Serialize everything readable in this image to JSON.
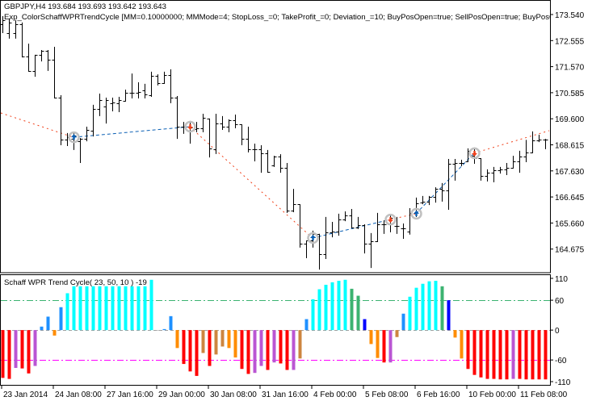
{
  "header": {
    "symbol_line": "GBPJPY,H4  193.684 193.693 193.642 193.643",
    "expert_line": "Exp_ColorSchaffWPRTrendCycle [MM=0.10000000; MMMode=4; StopLoss_=0; TakeProfit_=0; Deviation_=10; BuyPosOpen=true; SellPosOpen=true; BuyPosC"
  },
  "indicator": {
    "label": "Schaff WPR Trend Cycle( 23, 50, 10 ) -19"
  },
  "chart_data": [
    {
      "type": "ohlc",
      "symbol": "GBPJPY",
      "timeframe": "H4",
      "ylim": [
        163.78,
        174.09
      ],
      "y_tick_labels": [
        "173.540",
        "172.555",
        "171.570",
        "170.585",
        "169.600",
        "168.615",
        "167.630",
        "166.645",
        "165.660",
        "164.675"
      ],
      "x_tick_labels": [
        {
          "bar": 0,
          "label": "23 Jan 2014"
        },
        {
          "bar": 8,
          "label": "24 Jan 08:00"
        },
        {
          "bar": 16,
          "label": "27 Jan 16:00"
        },
        {
          "bar": 24,
          "label": "29 Jan 00:00"
        },
        {
          "bar": 32,
          "label": "30 Jan 08:00"
        },
        {
          "bar": 40,
          "label": "31 Jan 16:00"
        },
        {
          "bar": 48,
          "label": "4 Feb 00:00"
        },
        {
          "bar": 56,
          "label": "5 Feb 08:00"
        },
        {
          "bar": 64,
          "label": "6 Feb 16:00"
        },
        {
          "bar": 72,
          "label": "10 Feb 00:00"
        },
        {
          "bar": 80,
          "label": "11 Feb 08:00"
        }
      ],
      "bars_ohlc": [
        [
          173.17,
          173.48,
          172.87,
          173.33
        ],
        [
          172.84,
          173.39,
          172.66,
          173.24
        ],
        [
          172.84,
          173.33,
          172.66,
          173.17
        ],
        [
          173.17,
          173.24,
          171.95,
          171.95
        ],
        [
          171.95,
          172.44,
          171.41,
          171.41
        ],
        [
          171.41,
          172.02,
          171.22,
          172.02
        ],
        [
          172.02,
          172.2,
          171.8,
          172.17
        ],
        [
          172.17,
          172.2,
          171.44,
          171.83
        ],
        [
          171.83,
          172.32,
          170.4,
          170.4
        ],
        [
          170.4,
          170.49,
          168.63,
          168.81
        ],
        [
          168.81,
          169.06,
          168.6,
          168.9
        ],
        [
          168.85,
          169.06,
          168.45,
          168.97
        ],
        [
          168.75,
          168.87,
          167.96,
          168.85
        ],
        [
          168.85,
          169.3,
          168.78,
          169.18
        ],
        [
          169.15,
          170.13,
          168.96,
          169.97
        ],
        [
          169.97,
          170.55,
          169.73,
          170.31
        ],
        [
          170.06,
          170.4,
          169.45,
          170.31
        ],
        [
          170.19,
          170.4,
          169.91,
          170.22
        ],
        [
          170.19,
          170.43,
          169.88,
          170.31
        ],
        [
          170.28,
          170.7,
          170.28,
          170.58
        ],
        [
          170.58,
          171.31,
          170.4,
          170.58
        ],
        [
          170.58,
          170.98,
          170.4,
          170.61
        ],
        [
          170.67,
          170.92,
          170.4,
          170.52
        ],
        [
          170.49,
          171.38,
          170.46,
          171.22
        ],
        [
          171.22,
          171.28,
          170.89,
          170.95
        ],
        [
          170.95,
          171.38,
          170.95,
          171.25
        ],
        [
          171.25,
          171.47,
          170.22,
          170.4
        ],
        [
          170.4,
          170.46,
          168.87,
          169.3
        ],
        [
          169.3,
          169.48,
          169.06,
          169.3
        ],
        [
          169.3,
          169.52,
          168.69,
          169.27
        ],
        [
          169.21,
          169.48,
          169.12,
          169.24
        ],
        [
          169.24,
          169.79,
          169.12,
          169.64
        ],
        [
          169.61,
          169.61,
          168.17,
          168.48
        ],
        [
          168.45,
          169.79,
          168.3,
          169.42
        ],
        [
          169.42,
          169.7,
          169.21,
          169.3
        ],
        [
          169.3,
          169.58,
          169.12,
          169.55
        ],
        [
          169.55,
          169.76,
          169.27,
          169.39
        ],
        [
          169.39,
          169.39,
          168.63,
          168.85
        ],
        [
          168.85,
          169.3,
          168.36,
          168.45
        ],
        [
          168.45,
          168.66,
          168.02,
          168.45
        ],
        [
          168.45,
          168.6,
          167.59,
          168.3
        ],
        [
          168.3,
          168.42,
          167.59,
          167.59
        ],
        [
          167.84,
          168.2,
          167.81,
          168.17
        ],
        [
          168.17,
          168.26,
          167.59,
          167.75
        ],
        [
          167.75,
          167.93,
          166.07,
          166.13
        ],
        [
          166.13,
          166.95,
          166.1,
          166.37
        ],
        [
          166.37,
          166.37,
          164.76,
          164.88
        ],
        [
          164.88,
          165.0,
          164.36,
          165.0
        ],
        [
          165.0,
          165.37,
          164.76,
          165.25
        ],
        [
          165.25,
          165.25,
          163.93,
          164.48
        ],
        [
          164.48,
          165.89,
          164.33,
          165.31
        ],
        [
          165.31,
          165.7,
          165.15,
          165.34
        ],
        [
          165.34,
          166.01,
          165.21,
          165.79
        ],
        [
          165.79,
          166.1,
          165.76,
          165.95
        ],
        [
          165.95,
          166.19,
          165.49,
          165.49
        ],
        [
          165.49,
          165.89,
          165.46,
          165.58
        ],
        [
          165.58,
          165.61,
          164.54,
          164.88
        ],
        [
          164.88,
          165.28,
          163.99,
          164.97
        ],
        [
          164.97,
          166.04,
          164.97,
          165.61
        ],
        [
          165.61,
          165.76,
          165.28,
          165.61
        ],
        [
          165.61,
          165.98,
          165.34,
          165.86
        ],
        [
          165.55,
          165.89,
          165.28,
          165.55
        ],
        [
          165.46,
          165.64,
          165.09,
          165.46
        ],
        [
          165.34,
          166.22,
          165.25,
          166.04
        ],
        [
          166.04,
          166.62,
          165.92,
          166.4
        ],
        [
          166.43,
          166.68,
          166.4,
          166.46
        ],
        [
          166.46,
          166.68,
          166.37,
          166.65
        ],
        [
          166.65,
          167.01,
          166.46,
          166.95
        ],
        [
          166.95,
          167.17,
          166.5,
          166.89
        ],
        [
          166.89,
          168.08,
          166.19,
          167.9
        ],
        [
          167.9,
          168.08,
          167.29,
          167.93
        ],
        [
          167.93,
          168.05,
          167.84,
          167.93
        ],
        [
          167.99,
          168.48,
          167.99,
          168.39
        ],
        [
          168.2,
          168.51,
          167.93,
          168.11
        ],
        [
          168.11,
          168.11,
          167.29,
          167.44
        ],
        [
          167.44,
          167.69,
          167.26,
          167.56
        ],
        [
          167.56,
          167.78,
          167.23,
          167.65
        ],
        [
          167.65,
          167.78,
          167.56,
          167.69
        ],
        [
          167.69,
          167.93,
          167.5,
          167.75
        ],
        [
          167.75,
          168.2,
          167.75,
          167.99
        ],
        [
          167.99,
          168.39,
          167.59,
          168.17
        ],
        [
          168.17,
          168.8,
          167.99,
          168.33
        ],
        [
          168.33,
          169.12,
          168.33,
          168.78
        ],
        [
          168.78,
          169.0,
          168.75,
          168.81
        ],
        [
          168.81,
          168.84,
          168.48,
          168.81
        ]
      ],
      "signals": [
        {
          "bar": 11,
          "price": 168.9,
          "type": "buy"
        },
        {
          "bar": 29,
          "price": 169.3,
          "type": "sell"
        },
        {
          "bar": 48,
          "price": 165.09,
          "type": "buy"
        },
        {
          "bar": 60,
          "price": 165.79,
          "type": "sell"
        },
        {
          "bar": 64,
          "price": 166.01,
          "type": "buy"
        },
        {
          "bar": 73,
          "price": 168.3,
          "type": "sell"
        }
      ],
      "trade_line_start_price": 169.82,
      "trade_line_end_price": 169.15,
      "colors": {
        "bar": "#000000",
        "buy": "#0A5FB4",
        "sell": "#F0401A",
        "marker_ring": "#C0C0C0"
      }
    },
    {
      "type": "bar",
      "name": "Schaff WPR Trend Cycle",
      "ylim": [
        -110,
        112
      ],
      "y_tick_labels": [
        {
          "value": 110,
          "label": "110"
        },
        {
          "value": 60,
          "label": "60"
        },
        {
          "value": 0,
          "label": "0"
        },
        {
          "value": -60,
          "label": "-60"
        },
        {
          "value": -110,
          "label": "-110"
        }
      ],
      "levels": [
        {
          "value": 60,
          "color": "#3CB371"
        },
        {
          "value": 0,
          "color": "#A0A0A0"
        },
        {
          "value": -60,
          "color": "#FF00FF"
        }
      ],
      "values": [
        -96,
        -98,
        -76,
        -77,
        -87,
        -72,
        7,
        27,
        -11,
        46,
        74,
        88,
        88,
        88,
        88,
        88,
        88,
        88,
        88,
        88,
        88,
        88,
        88,
        101,
        0,
        2,
        28,
        -36,
        -68,
        -83,
        -92,
        -46,
        -72,
        -49,
        -33,
        -36,
        -55,
        -78,
        -88,
        -86,
        -72,
        -80,
        -65,
        -67,
        -80,
        -80,
        -57,
        22,
        62,
        82,
        91,
        96,
        99,
        101,
        83,
        69,
        22,
        -28,
        -56,
        -65,
        -65,
        -14,
        33,
        67,
        85,
        93,
        98,
        99,
        88,
        60,
        -15,
        -57,
        -78,
        -90,
        -95,
        -98,
        -98,
        -99,
        -99,
        -98,
        -98,
        -99,
        -99,
        -99,
        -99
      ],
      "bar_colors": [
        "R",
        "R",
        "O",
        "R",
        "R",
        "O",
        "D",
        "D",
        "N",
        "D",
        "A",
        "A",
        "A",
        "A",
        "A",
        "A",
        "A",
        "A",
        "A",
        "A",
        "A",
        "A",
        "A",
        "A",
        "G",
        "D",
        "D",
        "N",
        "R",
        "R",
        "R",
        "P",
        "R",
        "P",
        "P",
        "N",
        "N",
        "R",
        "R",
        "O",
        "O",
        "R",
        "O",
        "R",
        "R",
        "O",
        "P",
        "D",
        "A",
        "A",
        "A",
        "A",
        "A",
        "A",
        "S",
        "S",
        "B",
        "N",
        "N",
        "R",
        "O",
        "P",
        "D",
        "A",
        "A",
        "A",
        "A",
        "A",
        "S",
        "B",
        "N",
        "N",
        "R",
        "R",
        "R",
        "R",
        "R",
        "R",
        "R",
        "O",
        "R",
        "R",
        "R",
        "R",
        "R"
      ],
      "palette": {
        "R": "#FF0000",
        "O": "#BA55D3",
        "P": "#CD853F",
        "N": "#FF8C00",
        "D": "#1E90FF",
        "A": "#00FFFF",
        "S": "#3CB371",
        "B": "#0000FF",
        "G": "#A0A0A0"
      }
    }
  ]
}
